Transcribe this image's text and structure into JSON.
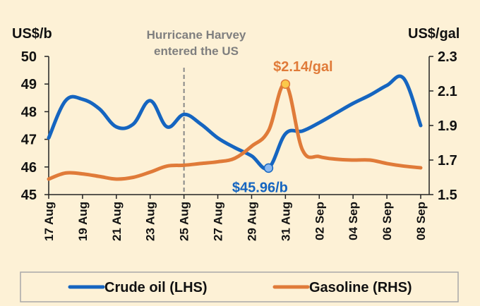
{
  "chart_data": {
    "type": "line",
    "title": "",
    "left_axis": {
      "label": "US$/b",
      "ylim": [
        45,
        50
      ],
      "ticks": [
        45,
        46,
        47,
        48,
        49,
        50
      ]
    },
    "right_axis": {
      "label": "US$/gal",
      "ylim": [
        1.5,
        2.3
      ],
      "ticks": [
        "1.5",
        "1.7",
        "1.9",
        "2.1",
        "2.3"
      ]
    },
    "x": [
      "17 Aug",
      "18 Aug",
      "19 Aug",
      "20 Aug",
      "21 Aug",
      "22 Aug",
      "23 Aug",
      "24 Aug",
      "25 Aug",
      "26 Aug",
      "27 Aug",
      "28 Aug",
      "29 Aug",
      "30 Aug",
      "31 Aug",
      "01 Sep",
      "02 Sep",
      "03 Sep",
      "04 Sep",
      "05 Sep",
      "06 Sep",
      "07 Sep",
      "08 Sep"
    ],
    "x_tick_labels": [
      "17 Aug",
      "19 Aug",
      "21 Aug",
      "23 Aug",
      "25 Aug",
      "27 Aug",
      "29 Aug",
      "31 Aug",
      "02 Sep",
      "04 Sep",
      "06 Sep",
      "08 Sep"
    ],
    "series": [
      {
        "name": "Crude oil (LHS)",
        "axis": "left",
        "color": "#1565c0",
        "values": [
          47.05,
          48.4,
          48.45,
          48.1,
          47.45,
          47.55,
          48.4,
          47.45,
          47.9,
          47.55,
          47.05,
          46.7,
          46.4,
          45.96,
          47.2,
          47.3,
          47.6,
          47.95,
          48.3,
          48.6,
          48.95,
          49.2,
          47.5
        ]
      },
      {
        "name": "Gasoline (RHS)",
        "axis": "right",
        "color": "#e07b39",
        "values": [
          1.59,
          1.625,
          1.62,
          1.605,
          1.59,
          1.6,
          1.63,
          1.665,
          1.67,
          1.68,
          1.69,
          1.71,
          1.78,
          1.87,
          2.14,
          1.76,
          1.72,
          1.705,
          1.7,
          1.7,
          1.68,
          1.665,
          1.655
        ]
      }
    ],
    "annotations": {
      "event_line_at": "25 Aug",
      "event_text_line1": "Hurricane Harvey",
      "event_text_line2": "entered the US",
      "crude_marker": {
        "x": "30 Aug",
        "value": 45.96,
        "label": "$45.96/b",
        "color": "#1565c0",
        "fill": "#8ab9f1"
      },
      "gasoline_marker": {
        "x": "31 Aug",
        "value": 2.14,
        "label": "$2.14/gal",
        "color": "#e07b39",
        "fill": "#fbc94b"
      }
    },
    "legend": {
      "placement": "bottom",
      "items": [
        "Crude oil (LHS)",
        "Gasoline (RHS)"
      ]
    },
    "grid": false
  }
}
